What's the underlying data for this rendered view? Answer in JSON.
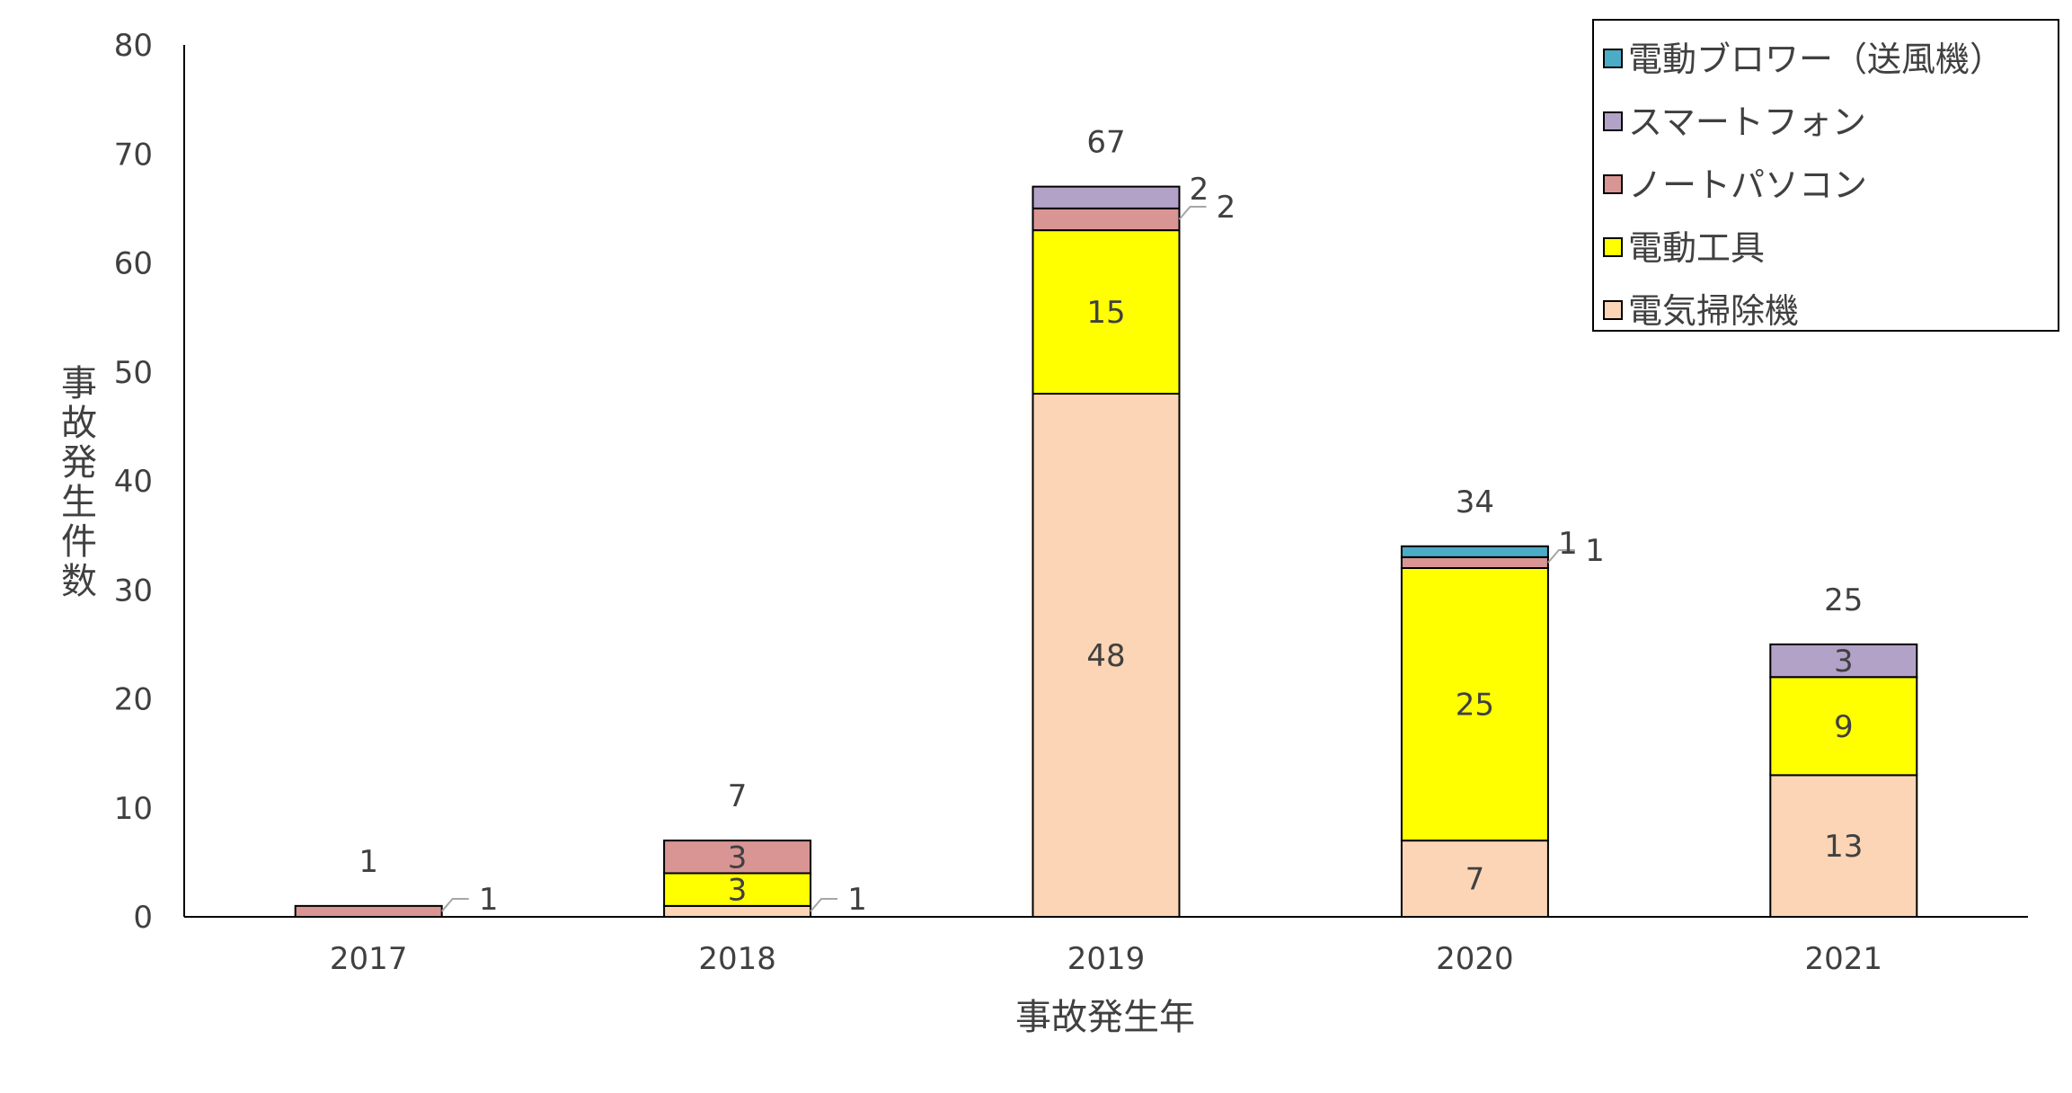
{
  "chart_data": {
    "type": "bar",
    "stacked": true,
    "title": "",
    "xlabel": "事故発生年",
    "ylabel": "事故発生件数",
    "categories": [
      "2017",
      "2018",
      "2019",
      "2020",
      "2021"
    ],
    "ylim": [
      0,
      80
    ],
    "yticks": [
      0,
      10,
      20,
      30,
      40,
      50,
      60,
      70,
      80
    ],
    "grid": false,
    "legend_position": "top-right",
    "series": [
      {
        "name": "電気掃除機",
        "color": "#FBD5B5",
        "values": [
          0,
          1,
          48,
          7,
          13
        ]
      },
      {
        "name": "電動工具",
        "color": "#FFFF00",
        "values": [
          0,
          3,
          15,
          25,
          9
        ]
      },
      {
        "name": "ノートパソコン",
        "color": "#D99594",
        "values": [
          1,
          3,
          2,
          1,
          0
        ]
      },
      {
        "name": "スマートフォン",
        "color": "#B2A2C7",
        "values": [
          0,
          0,
          2,
          0,
          3
        ]
      },
      {
        "name": "電動ブロワー（送風機）",
        "color": "#4BACC6",
        "values": [
          0,
          0,
          0,
          1,
          0
        ]
      }
    ],
    "totals": [
      1,
      7,
      67,
      34,
      25
    ],
    "legend_order": [
      "電動ブロワー（送風機）",
      "スマートフォン",
      "ノートパソコン",
      "電動工具",
      "電気掃除機"
    ]
  }
}
